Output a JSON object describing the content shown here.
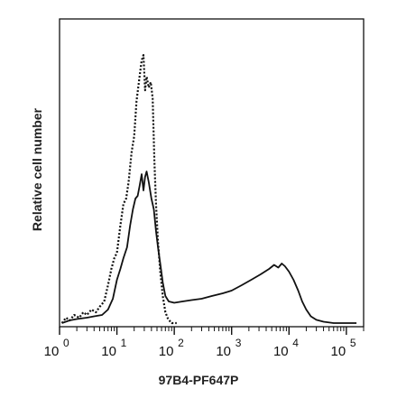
{
  "chart_data": {
    "type": "line",
    "title": "",
    "xlabel": "97B4-PF647P",
    "ylabel": "Relative cell number",
    "x_scale": "log",
    "xlim": [
      1,
      200000
    ],
    "ylim": [
      0,
      1
    ],
    "grid": false,
    "legend": "none",
    "x_ticks": [
      {
        "base": "10",
        "exp": "0",
        "value": 1
      },
      {
        "base": "10",
        "exp": "1",
        "value": 10
      },
      {
        "base": "10",
        "exp": "2",
        "value": 100
      },
      {
        "base": "10",
        "exp": "3",
        "value": 1000
      },
      {
        "base": "10",
        "exp": "4",
        "value": 10000
      },
      {
        "base": "10",
        "exp": "5",
        "value": 100000
      }
    ],
    "series": [
      {
        "style": "dotted",
        "color": "#111111",
        "points": [
          [
            1.1,
            0.0
          ],
          [
            1.3,
            0.02
          ],
          [
            1.5,
            0.01
          ],
          [
            1.8,
            0.03
          ],
          [
            2.2,
            0.02
          ],
          [
            2.6,
            0.04
          ],
          [
            3.0,
            0.03
          ],
          [
            3.6,
            0.05
          ],
          [
            4.3,
            0.04
          ],
          [
            5.0,
            0.06
          ],
          [
            6.0,
            0.08
          ],
          [
            7.0,
            0.14
          ],
          [
            8.0,
            0.2
          ],
          [
            9.0,
            0.24
          ],
          [
            10.0,
            0.26
          ],
          [
            11.5,
            0.36
          ],
          [
            13.0,
            0.44
          ],
          [
            14.5,
            0.46
          ],
          [
            16.0,
            0.52
          ],
          [
            18.0,
            0.63
          ],
          [
            20.0,
            0.69
          ],
          [
            22.0,
            0.82
          ],
          [
            24.5,
            0.9
          ],
          [
            27.0,
            0.97
          ],
          [
            29.0,
            0.99
          ],
          [
            31.0,
            0.86
          ],
          [
            33.0,
            0.91
          ],
          [
            36.0,
            0.87
          ],
          [
            39.0,
            0.89
          ],
          [
            42.0,
            0.83
          ],
          [
            45.0,
            0.6
          ],
          [
            48.0,
            0.44
          ],
          [
            52.0,
            0.3
          ],
          [
            57.0,
            0.19
          ],
          [
            63.0,
            0.1
          ],
          [
            70.0,
            0.04
          ],
          [
            78.0,
            0.015
          ],
          [
            90.0,
            0.0
          ],
          [
            110.0,
            0.0
          ]
        ]
      },
      {
        "style": "solid",
        "color": "#111111",
        "points": [
          [
            1.1,
            0.0
          ],
          [
            1.5,
            0.01
          ],
          [
            2.0,
            0.015
          ],
          [
            3.0,
            0.02
          ],
          [
            4.0,
            0.025
          ],
          [
            5.5,
            0.03
          ],
          [
            7.0,
            0.05
          ],
          [
            8.5,
            0.09
          ],
          [
            10.0,
            0.16
          ],
          [
            11.5,
            0.2
          ],
          [
            13.0,
            0.24
          ],
          [
            15.0,
            0.28
          ],
          [
            17.0,
            0.36
          ],
          [
            19.0,
            0.42
          ],
          [
            21.0,
            0.46
          ],
          [
            23.0,
            0.47
          ],
          [
            25.0,
            0.51
          ],
          [
            27.0,
            0.55
          ],
          [
            29.0,
            0.49
          ],
          [
            31.0,
            0.54
          ],
          [
            33.0,
            0.56
          ],
          [
            36.0,
            0.52
          ],
          [
            40.0,
            0.46
          ],
          [
            44.0,
            0.42
          ],
          [
            48.0,
            0.34
          ],
          [
            52.0,
            0.28
          ],
          [
            57.0,
            0.22
          ],
          [
            63.0,
            0.15
          ],
          [
            70.0,
            0.1
          ],
          [
            80.0,
            0.08
          ],
          [
            100.0,
            0.075
          ],
          [
            140.0,
            0.08
          ],
          [
            200.0,
            0.085
          ],
          [
            300.0,
            0.09
          ],
          [
            450.0,
            0.1
          ],
          [
            700.0,
            0.11
          ],
          [
            1000.0,
            0.12
          ],
          [
            1500.0,
            0.14
          ],
          [
            2200.0,
            0.16
          ],
          [
            3200.0,
            0.18
          ],
          [
            4500.0,
            0.2
          ],
          [
            5500.0,
            0.215
          ],
          [
            6500.0,
            0.205
          ],
          [
            7500.0,
            0.22
          ],
          [
            8500.0,
            0.21
          ],
          [
            10000.0,
            0.19
          ],
          [
            12000.0,
            0.16
          ],
          [
            14500.0,
            0.12
          ],
          [
            17000.0,
            0.08
          ],
          [
            20000.0,
            0.05
          ],
          [
            24000.0,
            0.025
          ],
          [
            30000.0,
            0.012
          ],
          [
            40000.0,
            0.005
          ],
          [
            60000.0,
            0.0
          ],
          [
            150000.0,
            0.0
          ]
        ]
      }
    ]
  }
}
